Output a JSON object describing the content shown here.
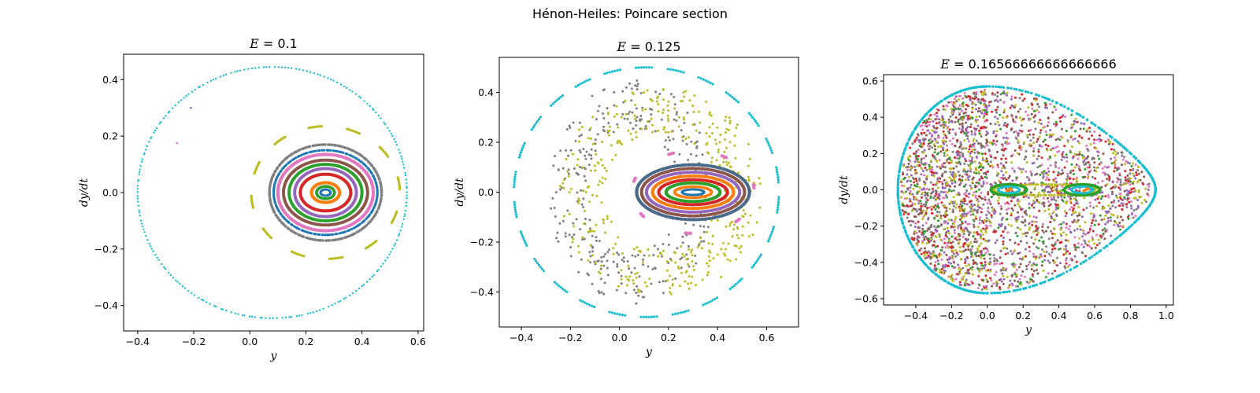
{
  "figure": {
    "suptitle": "Hénon-Heiles: Poincare section"
  },
  "palette": [
    "#1f77b4",
    "#ff7f0e",
    "#2ca02c",
    "#d62728",
    "#9467bd",
    "#8c564b",
    "#e377c2",
    "#7f7f7f",
    "#bcbd22",
    "#17becf"
  ],
  "chart_data": [
    {
      "type": "scatter",
      "title": "E = 0.1",
      "title_var": "E",
      "title_value": "0.1",
      "xlabel": "y",
      "ylabel": "dy/dt",
      "xlim": [
        -0.45,
        0.62
      ],
      "ylim": [
        -0.49,
        0.49
      ],
      "xticks": [
        -0.4,
        -0.2,
        0.0,
        0.2,
        0.4,
        0.6
      ],
      "xtick_labels": [
        "−0.4",
        "−0.2",
        "0.0",
        "0.2",
        "0.4",
        "0.6"
      ],
      "yticks": [
        -0.4,
        -0.2,
        0.0,
        0.2,
        0.4
      ],
      "ytick_labels": [
        "−0.4",
        "−0.2",
        "0.0",
        "0.2",
        "0.4"
      ],
      "grid": false,
      "series": [
        {
          "color": "#17becf",
          "kind": "ring",
          "center": [
            0.08,
            0.0
          ],
          "rx_left": 0.48,
          "rx_right": 0.48,
          "ry": 0.445,
          "n": 230,
          "size": 2.4
        },
        {
          "color": "#7f7f7f",
          "kind": "ring",
          "center": [
            0.27,
            0.0
          ],
          "rx_left": 0.2,
          "rx_right": 0.2,
          "ry": 0.17,
          "n": 160,
          "size": 3.6
        },
        {
          "color": "#1f77b4",
          "kind": "ring",
          "center": [
            0.27,
            0.0
          ],
          "rx_left": 0.185,
          "rx_right": 0.185,
          "ry": 0.15,
          "n": 150,
          "size": 3.3
        },
        {
          "color": "#e377c2",
          "kind": "ring",
          "center": [
            0.27,
            0.0
          ],
          "rx_left": 0.17,
          "rx_right": 0.17,
          "ry": 0.135,
          "n": 200,
          "size": 4.2
        },
        {
          "color": "#8c564b",
          "kind": "ring",
          "center": [
            0.27,
            0.0
          ],
          "rx_left": 0.15,
          "rx_right": 0.15,
          "ry": 0.115,
          "n": 180,
          "size": 4.0
        },
        {
          "color": "#2ca02c",
          "kind": "ring",
          "center": [
            0.27,
            0.0
          ],
          "rx_left": 0.13,
          "rx_right": 0.13,
          "ry": 0.1,
          "n": 170,
          "size": 4.0
        },
        {
          "color": "#9467bd",
          "kind": "ring",
          "center": [
            0.27,
            0.0
          ],
          "rx_left": 0.11,
          "rx_right": 0.11,
          "ry": 0.085,
          "n": 150,
          "size": 4.0
        },
        {
          "color": "#d62728",
          "kind": "ring",
          "center": [
            0.27,
            0.0
          ],
          "rx_left": 0.09,
          "rx_right": 0.09,
          "ry": 0.065,
          "n": 140,
          "size": 4.0
        },
        {
          "color": "#ffffff",
          "kind": "ring",
          "center": [
            0.27,
            0.0
          ],
          "rx_left": 0.065,
          "rx_right": 0.065,
          "ry": 0.048,
          "n": 80,
          "size": 3.0
        },
        {
          "color": "#ff7f0e",
          "kind": "ring",
          "center": [
            0.27,
            0.0
          ],
          "rx_left": 0.05,
          "rx_right": 0.05,
          "ry": 0.035,
          "n": 110,
          "size": 4.0
        },
        {
          "color": "#2ca02c",
          "kind": "ring",
          "center": [
            0.27,
            0.0
          ],
          "rx_left": 0.032,
          "rx_right": 0.032,
          "ry": 0.022,
          "n": 80,
          "size": 3.5
        },
        {
          "color": "#1f77b4",
          "kind": "ring",
          "center": [
            0.27,
            0.0
          ],
          "rx_left": 0.018,
          "rx_right": 0.018,
          "ry": 0.011,
          "n": 60,
          "size": 3.0
        },
        {
          "color": "#bcbd22",
          "kind": "islands",
          "center": [
            0.27,
            0.0
          ],
          "rx": 0.265,
          "ry": 0.235,
          "islands": 12,
          "per_island": 10,
          "arc": 0.2,
          "size": 3.2
        },
        {
          "color": "#9467bd",
          "kind": "points",
          "points": [
            [
              -0.21,
              0.3
            ]
          ],
          "size": 2.6
        },
        {
          "color": "#e377c2",
          "kind": "points",
          "points": [
            [
              -0.26,
              0.175
            ]
          ],
          "size": 2.6
        }
      ]
    },
    {
      "type": "scatter",
      "title": "E = 0.125",
      "title_var": "E",
      "title_value": "0.125",
      "xlabel": "y",
      "ylabel": "dy/dt",
      "xlim": [
        -0.49,
        0.73
      ],
      "ylim": [
        -0.54,
        0.54
      ],
      "xticks": [
        -0.4,
        -0.2,
        0.0,
        0.2,
        0.4,
        0.6
      ],
      "xtick_labels": [
        "−0.4",
        "−0.2",
        "0.0",
        "0.2",
        "0.4",
        "0.6"
      ],
      "yticks": [
        -0.4,
        -0.2,
        0.0,
        0.2,
        0.4
      ],
      "ytick_labels": [
        "−0.4",
        "−0.2",
        "0.0",
        "0.2",
        "0.4"
      ],
      "grid": false,
      "series": [
        {
          "color": "#17becf",
          "kind": "islands",
          "center": [
            0.11,
            0.0
          ],
          "rx": 0.54,
          "ry": 0.5,
          "islands": 26,
          "per_island": 7,
          "arc": 0.14,
          "size": 3.2
        },
        {
          "color": "#7f7f7f",
          "kind": "cloud",
          "center": [
            0.05,
            0.0
          ],
          "rx": 0.34,
          "ry": 0.45,
          "n": 320,
          "size": 3.0
        },
        {
          "color": "#bcbd22",
          "kind": "cloud",
          "center": [
            0.17,
            0.0
          ],
          "rx": 0.42,
          "ry": 0.42,
          "n": 380,
          "size": 3.0
        },
        {
          "color": "#e377c2",
          "kind": "islands",
          "center": [
            0.3,
            0.0
          ],
          "rx": 0.25,
          "ry": 0.165,
          "islands": 7,
          "per_island": 6,
          "arc": 0.1,
          "size": 4.0
        },
        {
          "color": "#4a6a8a",
          "kind": "ring",
          "center": [
            0.3,
            0.0
          ],
          "rx_left": 0.23,
          "rx_right": 0.23,
          "ry": 0.11,
          "n": 200,
          "size": 4.2
        },
        {
          "color": "#8c564b",
          "kind": "ring",
          "center": [
            0.3,
            0.0
          ],
          "rx_left": 0.21,
          "rx_right": 0.21,
          "ry": 0.095,
          "n": 190,
          "size": 4.0
        },
        {
          "color": "#9467bd",
          "kind": "ring",
          "center": [
            0.3,
            0.0
          ],
          "rx_left": 0.19,
          "rx_right": 0.19,
          "ry": 0.08,
          "n": 180,
          "size": 4.0
        },
        {
          "color": "#ff7f0e",
          "kind": "ring",
          "center": [
            0.3,
            0.0
          ],
          "rx_left": 0.165,
          "rx_right": 0.165,
          "ry": 0.065,
          "n": 170,
          "size": 4.0
        },
        {
          "color": "#d62728",
          "kind": "ring",
          "center": [
            0.3,
            0.0
          ],
          "rx_left": 0.14,
          "rx_right": 0.14,
          "ry": 0.05,
          "n": 150,
          "size": 4.0
        },
        {
          "color": "#2ca02c",
          "kind": "ring",
          "center": [
            0.3,
            0.0
          ],
          "rx_left": 0.11,
          "rx_right": 0.11,
          "ry": 0.037,
          "n": 130,
          "size": 4.0
        },
        {
          "color": "#ff7f0e",
          "kind": "ring",
          "center": [
            0.3,
            0.0
          ],
          "rx_left": 0.075,
          "rx_right": 0.075,
          "ry": 0.022,
          "n": 100,
          "size": 3.6
        },
        {
          "color": "#1f77b4",
          "kind": "ring",
          "center": [
            0.3,
            0.0
          ],
          "rx_left": 0.045,
          "rx_right": 0.045,
          "ry": 0.011,
          "n": 70,
          "size": 3.0
        }
      ]
    },
    {
      "type": "scatter",
      "title": "E = 0.16566666666666666",
      "title_var": "E",
      "title_value": "0.16566666666666666",
      "xlabel": "y",
      "ylabel": "dy/dt",
      "xlim": [
        -0.58,
        1.04
      ],
      "ylim": [
        -0.635,
        0.635
      ],
      "xticks": [
        -0.4,
        -0.2,
        0.0,
        0.2,
        0.4,
        0.6,
        0.8,
        1.0
      ],
      "xtick_labels": [
        "−0.4",
        "−0.2",
        "0.0",
        "0.2",
        "0.4",
        "0.6",
        "0.8",
        "1.0"
      ],
      "yticks": [
        -0.6,
        -0.4,
        -0.2,
        0.0,
        0.2,
        0.4,
        0.6
      ],
      "ytick_labels": [
        "−0.6",
        "−0.4",
        "−0.2",
        "0.0",
        "0.2",
        "0.4",
        "0.6"
      ],
      "grid": false,
      "series": [
        {
          "color": "#17becf",
          "kind": "ring",
          "center": [
            0.0,
            0.0
          ],
          "rx_left": 0.5,
          "rx_right": 0.94,
          "ry": 0.57,
          "n": 420,
          "size": 3.4,
          "pear": true
        },
        {
          "color": "#e377c2",
          "kind": "fill",
          "center": [
            0.0,
            0.0
          ],
          "rx_left": 0.5,
          "rx_right": 0.94,
          "ry": 0.57,
          "n": 520,
          "size": 3.0,
          "pear": true
        },
        {
          "color": "#8c564b",
          "kind": "fill",
          "center": [
            0.0,
            0.0
          ],
          "rx_left": 0.5,
          "rx_right": 0.94,
          "ry": 0.57,
          "n": 480,
          "size": 3.0,
          "pear": true
        },
        {
          "color": "#7f7f7f",
          "kind": "fill",
          "center": [
            0.0,
            0.0
          ],
          "rx_left": 0.5,
          "rx_right": 0.94,
          "ry": 0.57,
          "n": 480,
          "size": 3.0,
          "pear": true
        },
        {
          "color": "#d62728",
          "kind": "fill",
          "center": [
            0.0,
            0.0
          ],
          "rx_left": 0.5,
          "rx_right": 0.94,
          "ry": 0.57,
          "n": 380,
          "size": 3.0,
          "pear": true
        },
        {
          "color": "#9467bd",
          "kind": "fill",
          "center": [
            0.0,
            0.0
          ],
          "rx_left": 0.5,
          "rx_right": 0.94,
          "ry": 0.57,
          "n": 360,
          "size": 3.0,
          "pear": true
        },
        {
          "color": "#bcbd22",
          "kind": "fill",
          "center": [
            0.0,
            0.0
          ],
          "rx_left": 0.5,
          "rx_right": 0.94,
          "ry": 0.57,
          "n": 440,
          "size": 3.0,
          "pear": true
        },
        {
          "color": "#2ca02c",
          "kind": "fill",
          "center": [
            0.0,
            0.0
          ],
          "rx_left": 0.5,
          "rx_right": 0.94,
          "ry": 0.57,
          "n": 180,
          "size": 3.0,
          "pear": true
        },
        {
          "color": "#bcbd22",
          "kind": "ring",
          "center": [
            0.33,
            0.0
          ],
          "rx_left": 0.3,
          "rx_right": 0.3,
          "ry": 0.03,
          "n": 120,
          "size": 3.2
        },
        {
          "color": "#2ca02c",
          "kind": "ring",
          "center": [
            0.12,
            0.0
          ],
          "rx_left": 0.1,
          "rx_right": 0.1,
          "ry": 0.03,
          "n": 90,
          "size": 3.6
        },
        {
          "color": "#2ca02c",
          "kind": "ring",
          "center": [
            0.53,
            0.0
          ],
          "rx_left": 0.1,
          "rx_right": 0.1,
          "ry": 0.03,
          "n": 90,
          "size": 3.6
        },
        {
          "color": "#17becf",
          "kind": "ring",
          "center": [
            0.12,
            0.0
          ],
          "rx_left": 0.06,
          "rx_right": 0.06,
          "ry": 0.018,
          "n": 50,
          "size": 3.0
        },
        {
          "color": "#17becf",
          "kind": "ring",
          "center": [
            0.53,
            0.0
          ],
          "rx_left": 0.06,
          "rx_right": 0.06,
          "ry": 0.018,
          "n": 50,
          "size": 3.0
        },
        {
          "color": "#ff7f0e",
          "kind": "points",
          "points": [
            [
              0.12,
              0.0
            ],
            [
              0.13,
              0.005
            ],
            [
              0.11,
              -0.005
            ],
            [
              0.55,
              0.0
            ],
            [
              0.56,
              0.005
            ],
            [
              0.54,
              -0.005
            ]
          ],
          "size": 4.0
        },
        {
          "color": "#9467bd",
          "kind": "points",
          "points": [
            [
              0.33,
              0.015
            ],
            [
              0.34,
              -0.012
            ],
            [
              0.32,
              0.0
            ]
          ],
          "size": 3.5
        }
      ]
    }
  ]
}
